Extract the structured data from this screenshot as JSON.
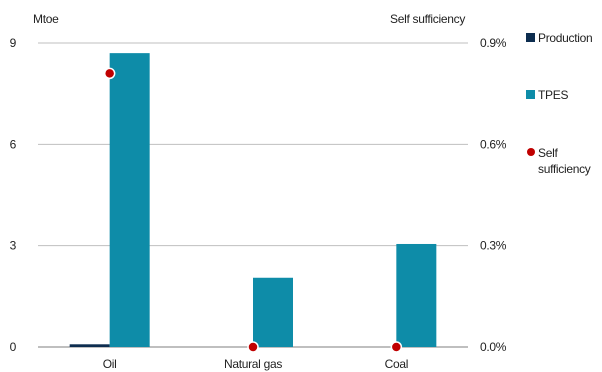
{
  "chart_data": {
    "type": "bar",
    "categories": [
      "Oil",
      "Natural gas",
      "Coal"
    ],
    "series": [
      {
        "name": "Production",
        "kind": "bar",
        "axis": "left",
        "color": "#0d2d4f",
        "values": [
          0.08,
          0.0,
          0.0
        ]
      },
      {
        "name": "TPES",
        "kind": "bar",
        "axis": "left",
        "color": "#0e8ca8",
        "values": [
          8.7,
          2.05,
          3.05
        ]
      },
      {
        "name": "Self sufficiency",
        "kind": "scatter",
        "axis": "right",
        "color": "#c00000",
        "values": [
          0.0081,
          0.0,
          0.0
        ]
      }
    ],
    "ylabel": "Mtoe",
    "ylabel_right": "Self sufficiency",
    "ylim": [
      0,
      9
    ],
    "ylim_right": [
      0,
      0.009
    ],
    "yticks": [
      "0",
      "3",
      "6",
      "9"
    ],
    "yticks_right": [
      "0.0%",
      "0.3%",
      "0.6%",
      "0.9%"
    ],
    "grid": true,
    "legend": "right",
    "legend_labels": {
      "production": "Production",
      "tpes": "TPES",
      "self": "Self sufficiency"
    }
  }
}
